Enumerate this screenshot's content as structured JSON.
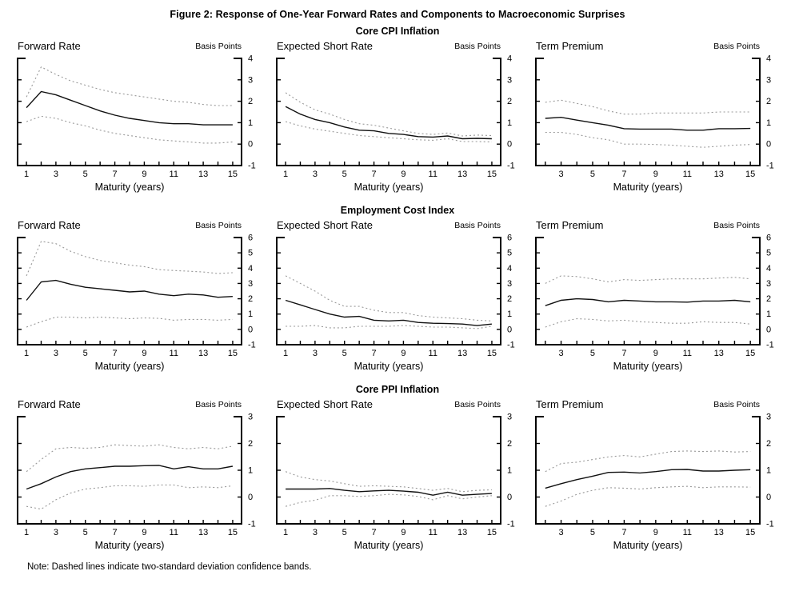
{
  "figure": {
    "title": "Figure 2: Response of One-Year Forward Rates and Components to Macroeconomic Surprises",
    "note": "Note: Dashed lines indicate two-standard deviation confidence bands.",
    "row_headings": [
      "Core CPI Inflation",
      "Employment Cost Index",
      "Core PPI Inflation"
    ],
    "xlabel": "Maturity (years)",
    "unit_label": "Basis Points"
  },
  "colors": {
    "line": "#111111",
    "band": "#999999",
    "axis": "#000000",
    "text": "#000000",
    "background": "#ffffff"
  },
  "chart_data": [
    {
      "type": "line",
      "group": "Core CPI Inflation",
      "title": "Forward Rate",
      "unit_label": "Basis Points",
      "xlabel": "Maturity (years)",
      "x": [
        1,
        2,
        3,
        4,
        5,
        6,
        7,
        8,
        9,
        10,
        11,
        12,
        13,
        14,
        15
      ],
      "xticks": [
        1,
        3,
        5,
        7,
        9,
        11,
        13,
        15
      ],
      "ylim": [
        -1,
        4
      ],
      "yticks": [
        -1,
        0,
        1,
        2,
        3,
        4
      ],
      "series": [
        {
          "name": "response",
          "style": "solid",
          "values": [
            1.7,
            2.45,
            2.3,
            2.05,
            1.8,
            1.55,
            1.35,
            1.2,
            1.1,
            1.0,
            0.95,
            0.95,
            0.9,
            0.9,
            0.9
          ]
        },
        {
          "name": "upper-band",
          "style": "dashed",
          "values": [
            2.2,
            3.6,
            3.25,
            2.95,
            2.75,
            2.55,
            2.4,
            2.3,
            2.2,
            2.1,
            2.0,
            1.95,
            1.85,
            1.8,
            1.8
          ]
        },
        {
          "name": "lower-band",
          "style": "dashed",
          "values": [
            1.05,
            1.3,
            1.2,
            1.0,
            0.85,
            0.65,
            0.5,
            0.4,
            0.3,
            0.2,
            0.15,
            0.1,
            0.05,
            0.05,
            0.1
          ]
        }
      ]
    },
    {
      "type": "line",
      "group": "Core CPI Inflation",
      "title": "Expected Short Rate",
      "unit_label": "Basis Points",
      "xlabel": "Maturity (years)",
      "x": [
        1,
        2,
        3,
        4,
        5,
        6,
        7,
        8,
        9,
        10,
        11,
        12,
        13,
        14,
        15
      ],
      "xticks": [
        1,
        3,
        5,
        7,
        9,
        11,
        13,
        15
      ],
      "ylim": [
        -1,
        4
      ],
      "yticks": [
        -1,
        0,
        1,
        2,
        3,
        4
      ],
      "series": [
        {
          "name": "response",
          "style": "solid",
          "values": [
            1.75,
            1.4,
            1.15,
            1.0,
            0.8,
            0.65,
            0.62,
            0.5,
            0.45,
            0.35,
            0.33,
            0.38,
            0.25,
            0.27,
            0.25
          ]
        },
        {
          "name": "upper-band",
          "style": "dashed",
          "values": [
            2.4,
            1.95,
            1.6,
            1.4,
            1.15,
            0.95,
            0.88,
            0.75,
            0.62,
            0.5,
            0.45,
            0.52,
            0.38,
            0.42,
            0.4
          ]
        },
        {
          "name": "lower-band",
          "style": "dashed",
          "values": [
            1.05,
            0.85,
            0.7,
            0.6,
            0.5,
            0.4,
            0.35,
            0.3,
            0.25,
            0.2,
            0.18,
            0.25,
            0.12,
            0.12,
            0.1
          ]
        }
      ]
    },
    {
      "type": "line",
      "group": "Core CPI Inflation",
      "title": "Term Premium",
      "unit_label": "Basis Points",
      "xlabel": "Maturity (years)",
      "x": [
        2,
        3,
        4,
        5,
        6,
        7,
        8,
        9,
        10,
        11,
        12,
        13,
        14,
        15
      ],
      "xticks": [
        3,
        5,
        7,
        9,
        11,
        13,
        15
      ],
      "ylim": [
        -1,
        4
      ],
      "yticks": [
        -1,
        0,
        1,
        2,
        3,
        4
      ],
      "series": [
        {
          "name": "response",
          "style": "solid",
          "values": [
            1.2,
            1.25,
            1.12,
            1.0,
            0.88,
            0.72,
            0.7,
            0.7,
            0.7,
            0.65,
            0.65,
            0.72,
            0.72,
            0.73
          ]
        },
        {
          "name": "upper-band",
          "style": "dashed",
          "values": [
            1.95,
            2.05,
            1.9,
            1.75,
            1.55,
            1.4,
            1.4,
            1.45,
            1.45,
            1.45,
            1.45,
            1.5,
            1.5,
            1.5
          ]
        },
        {
          "name": "lower-band",
          "style": "dashed",
          "values": [
            0.55,
            0.55,
            0.45,
            0.3,
            0.2,
            0.0,
            0.0,
            -0.02,
            -0.05,
            -0.1,
            -0.15,
            -0.1,
            -0.05,
            -0.02
          ]
        }
      ]
    },
    {
      "type": "line",
      "group": "Employment Cost Index",
      "title": "Forward Rate",
      "unit_label": "Basis Points",
      "xlabel": "Maturity (years)",
      "x": [
        1,
        2,
        3,
        4,
        5,
        6,
        7,
        8,
        9,
        10,
        11,
        12,
        13,
        14,
        15
      ],
      "xticks": [
        1,
        3,
        5,
        7,
        9,
        11,
        13,
        15
      ],
      "ylim": [
        -1,
        6
      ],
      "yticks": [
        -1,
        0,
        1,
        2,
        3,
        4,
        5,
        6
      ],
      "series": [
        {
          "name": "response",
          "style": "solid",
          "values": [
            1.9,
            3.1,
            3.2,
            2.95,
            2.75,
            2.65,
            2.55,
            2.45,
            2.5,
            2.3,
            2.2,
            2.3,
            2.25,
            2.1,
            2.15
          ]
        },
        {
          "name": "upper-band",
          "style": "dashed",
          "values": [
            3.5,
            5.75,
            5.6,
            5.1,
            4.75,
            4.5,
            4.35,
            4.2,
            4.1,
            3.9,
            3.85,
            3.8,
            3.75,
            3.65,
            3.7
          ]
        },
        {
          "name": "lower-band",
          "style": "dashed",
          "values": [
            0.15,
            0.5,
            0.8,
            0.8,
            0.75,
            0.8,
            0.75,
            0.7,
            0.75,
            0.72,
            0.6,
            0.65,
            0.65,
            0.6,
            0.65
          ]
        }
      ]
    },
    {
      "type": "line",
      "group": "Employment Cost Index",
      "title": "Expected Short Rate",
      "unit_label": "Basis Points",
      "xlabel": "Maturity (years)",
      "x": [
        1,
        2,
        3,
        4,
        5,
        6,
        7,
        8,
        9,
        10,
        11,
        12,
        13,
        14,
        15
      ],
      "xticks": [
        1,
        3,
        5,
        7,
        9,
        11,
        13,
        15
      ],
      "ylim": [
        -1,
        6
      ],
      "yticks": [
        -1,
        0,
        1,
        2,
        3,
        4,
        5,
        6
      ],
      "series": [
        {
          "name": "response",
          "style": "solid",
          "values": [
            1.9,
            1.6,
            1.3,
            1.0,
            0.8,
            0.85,
            0.6,
            0.55,
            0.6,
            0.45,
            0.4,
            0.38,
            0.35,
            0.25,
            0.35
          ]
        },
        {
          "name": "upper-band",
          "style": "dashed",
          "values": [
            3.5,
            3.0,
            2.5,
            1.9,
            1.5,
            1.5,
            1.25,
            1.1,
            1.1,
            0.9,
            0.8,
            0.75,
            0.7,
            0.6,
            0.55
          ]
        },
        {
          "name": "lower-band",
          "style": "dashed",
          "values": [
            0.2,
            0.2,
            0.25,
            0.1,
            0.1,
            0.2,
            0.2,
            0.2,
            0.25,
            0.2,
            0.15,
            0.15,
            0.1,
            0.05,
            0.2
          ]
        }
      ]
    },
    {
      "type": "line",
      "group": "Employment Cost Index",
      "title": "Term Premium",
      "unit_label": "Basis Points",
      "xlabel": "Maturity (years)",
      "x": [
        2,
        3,
        4,
        5,
        6,
        7,
        8,
        9,
        10,
        11,
        12,
        13,
        14,
        15
      ],
      "xticks": [
        3,
        5,
        7,
        9,
        11,
        13,
        15
      ],
      "ylim": [
        -1,
        6
      ],
      "yticks": [
        -1,
        0,
        1,
        2,
        3,
        4,
        5,
        6
      ],
      "series": [
        {
          "name": "response",
          "style": "solid",
          "values": [
            1.55,
            1.9,
            2.0,
            1.95,
            1.8,
            1.9,
            1.85,
            1.8,
            1.8,
            1.78,
            1.85,
            1.85,
            1.9,
            1.8
          ]
        },
        {
          "name": "upper-band",
          "style": "dashed",
          "values": [
            3.0,
            3.5,
            3.45,
            3.3,
            3.1,
            3.25,
            3.2,
            3.25,
            3.3,
            3.3,
            3.3,
            3.35,
            3.4,
            3.3
          ]
        },
        {
          "name": "lower-band",
          "style": "dashed",
          "values": [
            0.15,
            0.5,
            0.7,
            0.65,
            0.55,
            0.6,
            0.5,
            0.45,
            0.4,
            0.4,
            0.5,
            0.45,
            0.45,
            0.35
          ]
        }
      ]
    },
    {
      "type": "line",
      "group": "Core PPI Inflation",
      "title": "Forward Rate",
      "unit_label": "Basis Points",
      "xlabel": "Maturity (years)",
      "x": [
        1,
        2,
        3,
        4,
        5,
        6,
        7,
        8,
        9,
        10,
        11,
        12,
        13,
        14,
        15
      ],
      "xticks": [
        1,
        3,
        5,
        7,
        9,
        11,
        13,
        15
      ],
      "ylim": [
        -1,
        3
      ],
      "yticks": [
        -1,
        0,
        1,
        2,
        3
      ],
      "series": [
        {
          "name": "response",
          "style": "solid",
          "values": [
            0.3,
            0.5,
            0.75,
            0.95,
            1.05,
            1.1,
            1.15,
            1.15,
            1.17,
            1.18,
            1.05,
            1.13,
            1.05,
            1.05,
            1.15
          ]
        },
        {
          "name": "upper-band",
          "style": "dashed",
          "values": [
            0.95,
            1.4,
            1.8,
            1.85,
            1.82,
            1.85,
            1.95,
            1.92,
            1.9,
            1.95,
            1.85,
            1.8,
            1.85,
            1.8,
            1.9
          ]
        },
        {
          "name": "lower-band",
          "style": "dashed",
          "values": [
            -0.35,
            -0.45,
            -0.1,
            0.15,
            0.3,
            0.35,
            0.42,
            0.42,
            0.4,
            0.45,
            0.45,
            0.35,
            0.38,
            0.35,
            0.42
          ]
        }
      ]
    },
    {
      "type": "line",
      "group": "Core PPI Inflation",
      "title": "Expected Short Rate",
      "unit_label": "Basis Points",
      "xlabel": "Maturity (years)",
      "x": [
        1,
        2,
        3,
        4,
        5,
        6,
        7,
        8,
        9,
        10,
        11,
        12,
        13,
        14,
        15
      ],
      "xticks": [
        1,
        3,
        5,
        7,
        9,
        11,
        13,
        15
      ],
      "ylim": [
        -1,
        3
      ],
      "yticks": [
        -1,
        0,
        1,
        2,
        3
      ],
      "series": [
        {
          "name": "response",
          "style": "solid",
          "values": [
            0.3,
            0.3,
            0.3,
            0.32,
            0.25,
            0.2,
            0.23,
            0.25,
            0.22,
            0.18,
            0.07,
            0.18,
            0.07,
            0.1,
            0.13
          ]
        },
        {
          "name": "upper-band",
          "style": "dashed",
          "values": [
            0.95,
            0.75,
            0.65,
            0.6,
            0.5,
            0.4,
            0.42,
            0.4,
            0.38,
            0.32,
            0.25,
            0.32,
            0.2,
            0.25,
            0.27
          ]
        },
        {
          "name": "lower-band",
          "style": "dashed",
          "values": [
            -0.35,
            -0.2,
            -0.12,
            0.05,
            0.05,
            0.02,
            0.05,
            0.1,
            0.08,
            0.02,
            -0.1,
            0.05,
            -0.07,
            0.0,
            0.05
          ]
        }
      ]
    },
    {
      "type": "line",
      "group": "Core PPI Inflation",
      "title": "Term Premium",
      "unit_label": "Basis Points",
      "xlabel": "Maturity (years)",
      "x": [
        2,
        3,
        4,
        5,
        6,
        7,
        8,
        9,
        10,
        11,
        12,
        13,
        14,
        15
      ],
      "xticks": [
        3,
        5,
        7,
        9,
        11,
        13,
        15
      ],
      "ylim": [
        -1,
        3
      ],
      "yticks": [
        -1,
        0,
        1,
        2,
        3
      ],
      "series": [
        {
          "name": "response",
          "style": "solid",
          "values": [
            0.33,
            0.5,
            0.65,
            0.78,
            0.92,
            0.93,
            0.9,
            0.95,
            1.02,
            1.03,
            0.97,
            0.97,
            1.0,
            1.02
          ]
        },
        {
          "name": "upper-band",
          "style": "dashed",
          "values": [
            0.95,
            1.25,
            1.3,
            1.4,
            1.5,
            1.55,
            1.5,
            1.6,
            1.7,
            1.72,
            1.7,
            1.72,
            1.68,
            1.7
          ]
        },
        {
          "name": "lower-band",
          "style": "dashed",
          "values": [
            -0.35,
            -0.15,
            0.1,
            0.25,
            0.35,
            0.33,
            0.3,
            0.35,
            0.38,
            0.4,
            0.35,
            0.38,
            0.38,
            0.37
          ]
        }
      ]
    }
  ]
}
